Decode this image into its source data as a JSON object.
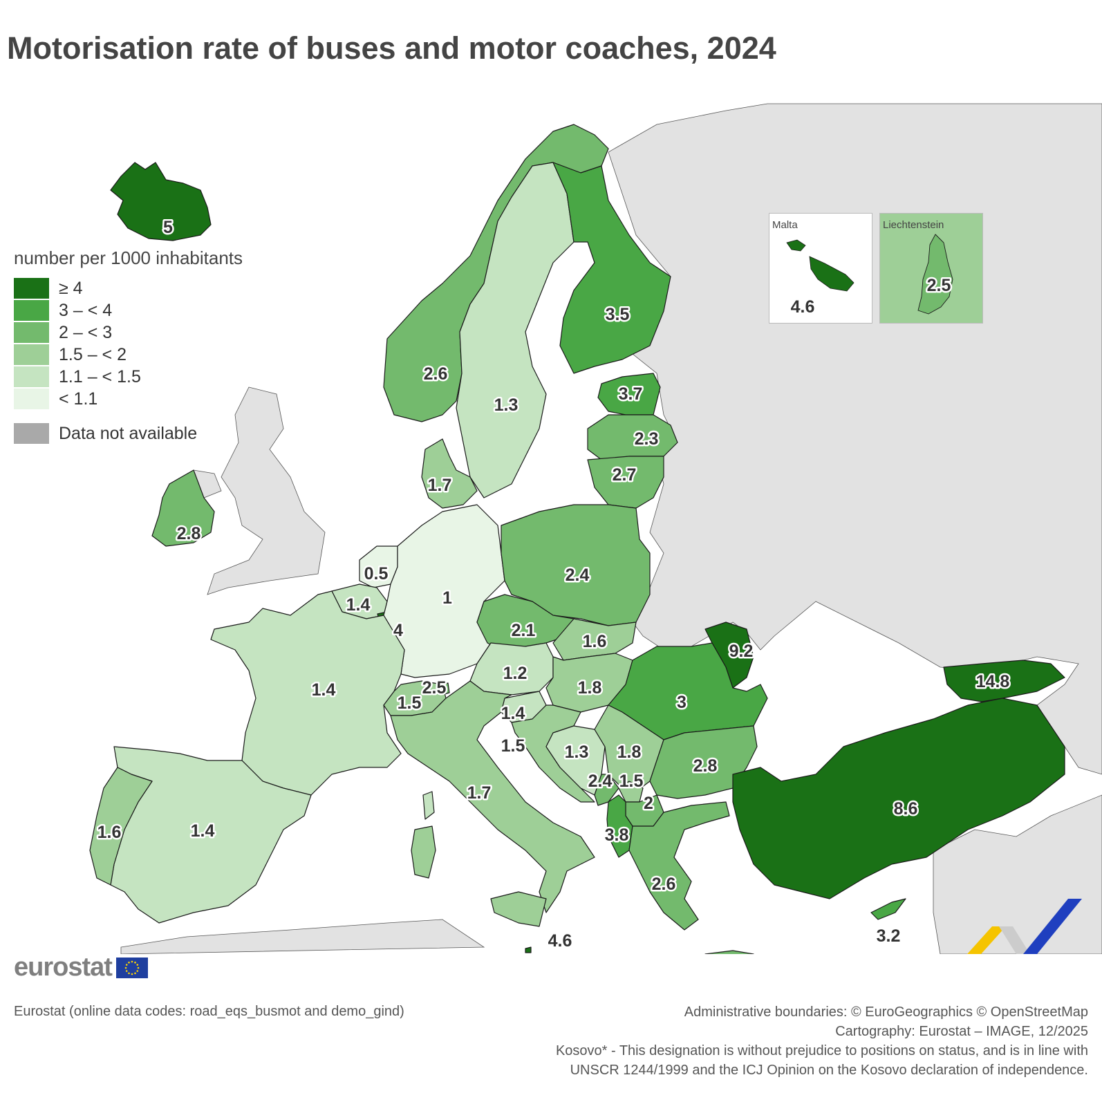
{
  "title": "Motorisation rate of buses and motor coaches, 2024",
  "legend": {
    "title": "number per 1000 inhabitants",
    "classes": [
      {
        "label": "≥ 4",
        "color": "#1a7116"
      },
      {
        "label": "3 – < 4",
        "color": "#49a745"
      },
      {
        "label": "2 – < 3",
        "color": "#73ba6d"
      },
      {
        "label": "1.5 – < 2",
        "color": "#9ecf97"
      },
      {
        "label": "1.1 – < 1.5",
        "color": "#c5e4c1"
      },
      {
        "label": "< 1.1",
        "color": "#e8f5e6"
      }
    ],
    "na_label": "Data not available",
    "na_color": "#a9a9a9"
  },
  "map_values": [
    {
      "country": "Iceland",
      "value": 5
    },
    {
      "country": "Norway",
      "value": 2.6
    },
    {
      "country": "Sweden",
      "value": 1.3
    },
    {
      "country": "Finland",
      "value": 3.5
    },
    {
      "country": "Estonia",
      "value": 3.7
    },
    {
      "country": "Latvia",
      "value": 2.3
    },
    {
      "country": "Lithuania",
      "value": 2.7
    },
    {
      "country": "Denmark",
      "value": 1.7
    },
    {
      "country": "Ireland",
      "value": 2.8
    },
    {
      "country": "Netherlands",
      "value": 0.5
    },
    {
      "country": "Belgium",
      "value": 1.4
    },
    {
      "country": "Luxembourg",
      "value": 4
    },
    {
      "country": "Germany",
      "value": 1
    },
    {
      "country": "Poland",
      "value": 2.4
    },
    {
      "country": "Czechia",
      "value": 2.1
    },
    {
      "country": "Slovakia",
      "value": 1.6
    },
    {
      "country": "Austria",
      "value": 1.2
    },
    {
      "country": "Hungary",
      "value": 1.8
    },
    {
      "country": "Moldova",
      "value": 9.2
    },
    {
      "country": "Romania",
      "value": 3
    },
    {
      "country": "Georgia",
      "value": 14.8
    },
    {
      "country": "France",
      "value": 1.4
    },
    {
      "country": "Switzerland",
      "value": 1.5
    },
    {
      "country": "Liechtenstein",
      "value": 2.5
    },
    {
      "country": "Slovenia",
      "value": 1.4
    },
    {
      "country": "Croatia",
      "value": 1.5
    },
    {
      "country": "Bosnia and Herzegovina",
      "value": 1.3
    },
    {
      "country": "Serbia",
      "value": 1.8
    },
    {
      "country": "Bulgaria",
      "value": 2.8
    },
    {
      "country": "Montenegro",
      "value": 2.4
    },
    {
      "country": "Kosovo*",
      "value": 1.5
    },
    {
      "country": "North Macedonia",
      "value": 2
    },
    {
      "country": "Albania",
      "value": 3.8
    },
    {
      "country": "Greece",
      "value": 2.6
    },
    {
      "country": "Italy",
      "value": 1.7
    },
    {
      "country": "Spain",
      "value": 1.4
    },
    {
      "country": "Portugal",
      "value": 1.6
    },
    {
      "country": "Türkiye",
      "value": 8.6
    },
    {
      "country": "Cyprus",
      "value": 3.2
    },
    {
      "country": "Malta",
      "value": 4.6
    }
  ],
  "insets": {
    "malta": {
      "title": "Malta",
      "value": "4.6"
    },
    "liechtenstein": {
      "title": "Liechtenstein",
      "value": "2.5"
    }
  },
  "footer": {
    "brand": "eurostat",
    "source": "Eurostat (online data codes: road_eqs_busmot and demo_gind)",
    "credits": [
      "Administrative boundaries: © EuroGeographics © OpenStreetMap",
      "Cartography: Eurostat – IMAGE, 12/2025",
      "Kosovo* - This designation is without prejudice to positions on status, and is in line with",
      "UNSCR 1244/1999 and the ICJ Opinion on the Kosovo declaration of independence."
    ]
  }
}
